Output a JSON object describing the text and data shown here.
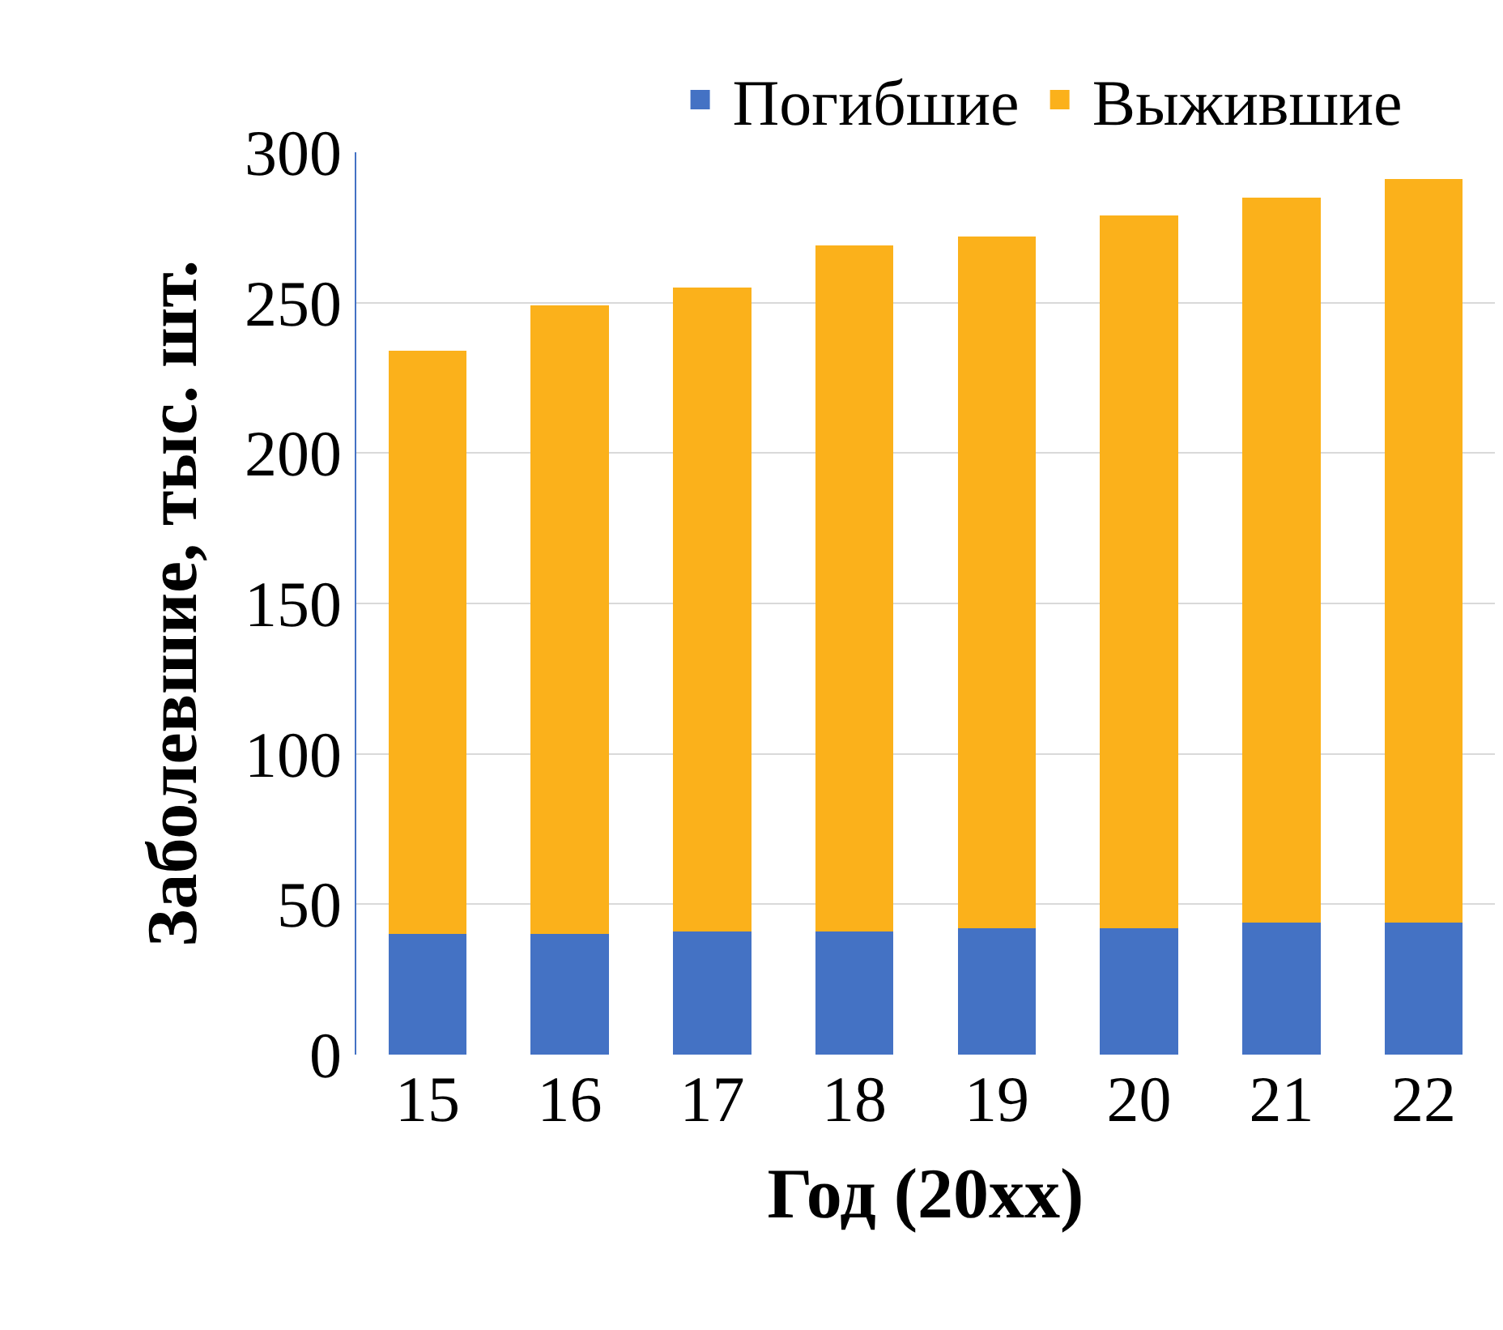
{
  "chart_data": {
    "type": "bar",
    "stacked": true,
    "xlabel": "Год (20xx)",
    "ylabel": "Заболевшие, тыс. шт.",
    "categories": [
      "15",
      "16",
      "17",
      "18",
      "19",
      "20",
      "21",
      "22"
    ],
    "series": [
      {
        "name": "Погибшие",
        "color": "#4472c4",
        "values": [
          40,
          40,
          41,
          41,
          42,
          42,
          44,
          44
        ]
      },
      {
        "name": "Выжившие",
        "color": "#fbb11b",
        "values": [
          194,
          209,
          214,
          228,
          230,
          237,
          241,
          247
        ]
      }
    ],
    "ylim": [
      0,
      300
    ],
    "yticks": [
      0,
      50,
      100,
      150,
      200,
      250,
      300
    ],
    "grid": "y",
    "legend": "top"
  }
}
